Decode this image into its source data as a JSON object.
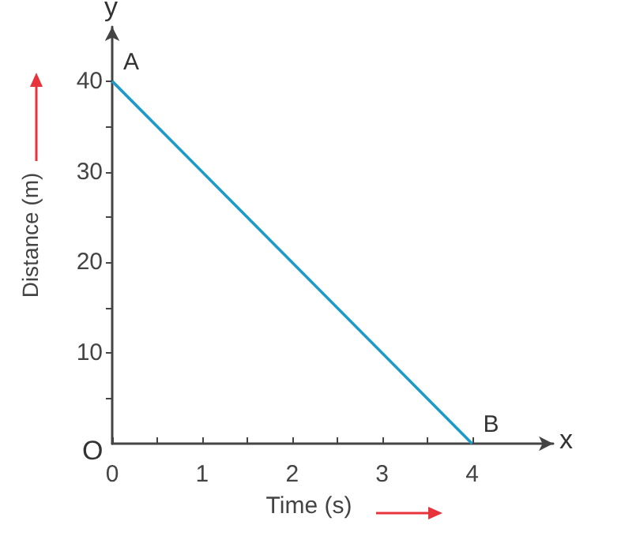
{
  "chart_data": {
    "type": "line",
    "xlabel": "Time (s)",
    "ylabel": "Distance (m)",
    "x": [
      0,
      4
    ],
    "series": [
      {
        "color": "#1c9ac8",
        "values": [
          40,
          0
        ]
      }
    ],
    "xlim": [
      0,
      4.9
    ],
    "ylim": [
      0,
      46
    ],
    "xticks": [
      0,
      {
        "value": 0.5,
        "label": null
      },
      1,
      {
        "value": 1.5,
        "label": null
      },
      2,
      {
        "value": 2.5,
        "label": null
      },
      3,
      {
        "value": 3.5,
        "label": null
      },
      4
    ],
    "yticks": [
      {
        "value": 5,
        "label": null
      },
      10,
      {
        "value": 15,
        "label": null
      },
      20,
      {
        "value": 25,
        "label": null
      },
      30,
      {
        "value": 35,
        "label": null
      },
      40
    ],
    "annotations": [
      "x",
      "y",
      "O",
      {
        "text": "A",
        "x": 0,
        "y": 40
      },
      {
        "text": "B",
        "x": 4,
        "y": 0
      }
    ],
    "grid": false,
    "marker": "none",
    "line_style": "solid"
  }
}
